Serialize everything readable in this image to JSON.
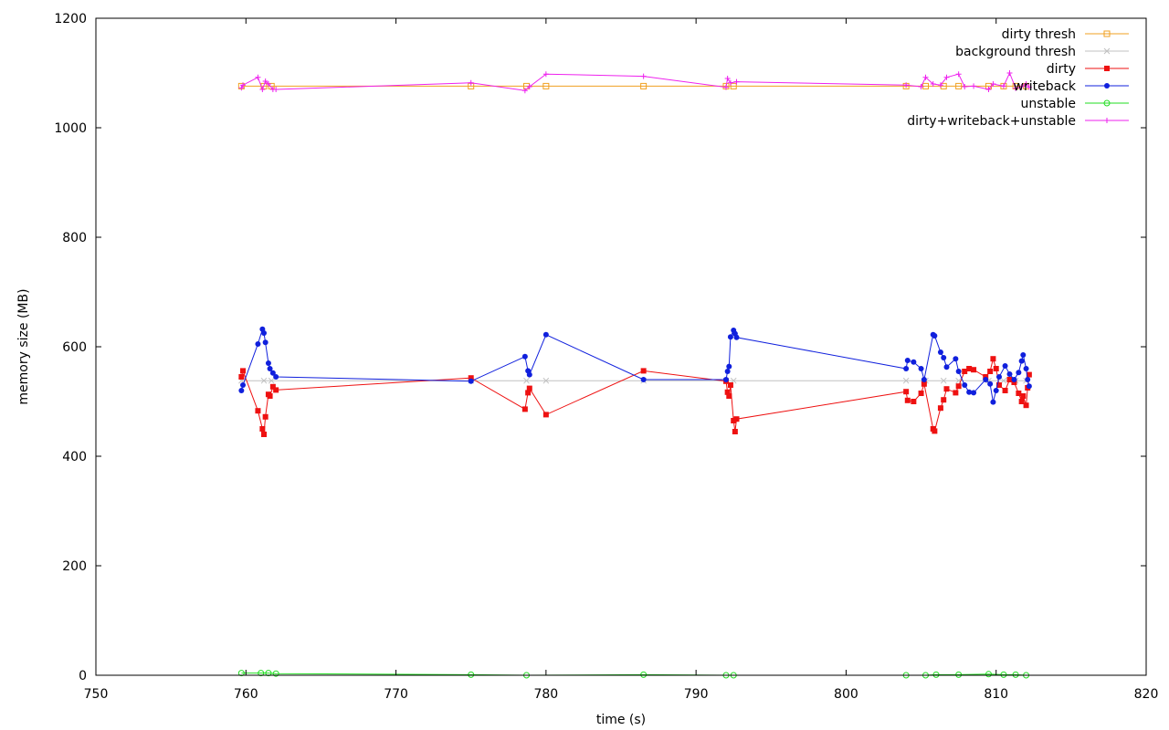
{
  "chart_data": {
    "type": "line",
    "xlabel": "time (s)",
    "ylabel": "memory size (MB)",
    "xlim": [
      750,
      820
    ],
    "ylim": [
      0,
      1200
    ],
    "x_ticks": [
      "750",
      "760",
      "770",
      "780",
      "790",
      "800",
      "810",
      "820"
    ],
    "y_ticks": [
      "0",
      "200",
      "400",
      "600",
      "800",
      "1000",
      "1200"
    ],
    "grid": false,
    "legend_position": "top-right",
    "series": [
      {
        "name": "dirty thresh",
        "color": "#f0a020",
        "marker": "square-open",
        "points": [
          [
            759.7,
            1076
          ],
          [
            761.2,
            1076
          ],
          [
            761.7,
            1076
          ],
          [
            775,
            1076
          ],
          [
            778.7,
            1076
          ],
          [
            780,
            1076
          ],
          [
            786.5,
            1076
          ],
          [
            792,
            1076
          ],
          [
            792.5,
            1076
          ],
          [
            804,
            1076
          ],
          [
            805.3,
            1076
          ],
          [
            806.5,
            1076
          ],
          [
            807.5,
            1076
          ],
          [
            809.5,
            1076
          ],
          [
            810.5,
            1076
          ],
          [
            811.3,
            1076
          ],
          [
            812,
            1076
          ]
        ]
      },
      {
        "name": "background thresh",
        "color": "#c0c0c0",
        "marker": "x",
        "points": [
          [
            759.7,
            538
          ],
          [
            761.2,
            538
          ],
          [
            761.7,
            538
          ],
          [
            775,
            538
          ],
          [
            778.7,
            538
          ],
          [
            780,
            538
          ],
          [
            786.5,
            538
          ],
          [
            792,
            538
          ],
          [
            792.5,
            538
          ],
          [
            804,
            538
          ],
          [
            805.3,
            538
          ],
          [
            806.5,
            538
          ],
          [
            807.5,
            538
          ],
          [
            809.5,
            538
          ],
          [
            810.5,
            538
          ],
          [
            811.3,
            538
          ],
          [
            812,
            538
          ]
        ]
      },
      {
        "name": "dirty",
        "color": "#ee1111",
        "marker": "square",
        "points": [
          [
            759.7,
            545
          ],
          [
            759.8,
            556
          ],
          [
            760.8,
            483
          ],
          [
            761.1,
            450
          ],
          [
            761.2,
            440
          ],
          [
            761.3,
            472
          ],
          [
            761.5,
            513
          ],
          [
            761.6,
            510
          ],
          [
            761.8,
            527
          ],
          [
            762,
            521
          ],
          [
            775,
            543
          ],
          [
            778.6,
            486
          ],
          [
            778.8,
            516
          ],
          [
            778.9,
            524
          ],
          [
            780,
            476
          ],
          [
            786.5,
            556
          ],
          [
            792,
            537
          ],
          [
            792.1,
            517
          ],
          [
            792.2,
            510
          ],
          [
            792.3,
            530
          ],
          [
            792.5,
            465
          ],
          [
            792.6,
            445
          ],
          [
            792.7,
            468
          ],
          [
            804,
            518
          ],
          [
            804.1,
            502
          ],
          [
            804.5,
            500
          ],
          [
            805,
            515
          ],
          [
            805.2,
            532
          ],
          [
            805.8,
            450
          ],
          [
            805.9,
            446
          ],
          [
            806.3,
            488
          ],
          [
            806.5,
            503
          ],
          [
            806.7,
            523
          ],
          [
            807.3,
            516
          ],
          [
            807.5,
            528
          ],
          [
            807.9,
            555
          ],
          [
            808.2,
            560
          ],
          [
            808.5,
            558
          ],
          [
            809.3,
            545
          ],
          [
            809.6,
            555
          ],
          [
            809.8,
            578
          ],
          [
            810,
            560
          ],
          [
            810.2,
            530
          ],
          [
            810.6,
            520
          ],
          [
            810.9,
            540
          ],
          [
            811.2,
            535
          ],
          [
            811.5,
            515
          ],
          [
            811.7,
            500
          ],
          [
            811.8,
            510
          ],
          [
            812,
            493
          ],
          [
            812.1,
            525
          ],
          [
            812.2,
            549
          ]
        ]
      },
      {
        "name": "writeback",
        "color": "#1020dd",
        "marker": "circle",
        "points": [
          [
            759.7,
            520
          ],
          [
            759.8,
            530
          ],
          [
            760.8,
            605
          ],
          [
            761.1,
            632
          ],
          [
            761.2,
            625
          ],
          [
            761.3,
            608
          ],
          [
            761.5,
            570
          ],
          [
            761.6,
            560
          ],
          [
            761.8,
            552
          ],
          [
            762,
            545
          ],
          [
            775,
            537
          ],
          [
            778.6,
            582
          ],
          [
            778.8,
            556
          ],
          [
            778.9,
            549
          ],
          [
            780,
            622
          ],
          [
            786.5,
            540
          ],
          [
            792,
            540
          ],
          [
            792.1,
            555
          ],
          [
            792.2,
            564
          ],
          [
            792.3,
            618
          ],
          [
            792.5,
            630
          ],
          [
            792.6,
            624
          ],
          [
            792.7,
            617
          ],
          [
            804,
            560
          ],
          [
            804.1,
            575
          ],
          [
            804.5,
            572
          ],
          [
            805,
            560
          ],
          [
            805.2,
            540
          ],
          [
            805.8,
            622
          ],
          [
            805.9,
            620
          ],
          [
            806.3,
            590
          ],
          [
            806.5,
            580
          ],
          [
            806.7,
            563
          ],
          [
            807.3,
            578
          ],
          [
            807.5,
            555
          ],
          [
            807.9,
            530
          ],
          [
            808.2,
            517
          ],
          [
            808.5,
            516
          ],
          [
            809.3,
            540
          ],
          [
            809.6,
            532
          ],
          [
            809.8,
            499
          ],
          [
            810,
            520
          ],
          [
            810.2,
            545
          ],
          [
            810.6,
            565
          ],
          [
            810.9,
            550
          ],
          [
            811.2,
            540
          ],
          [
            811.5,
            553
          ],
          [
            811.7,
            574
          ],
          [
            811.8,
            585
          ],
          [
            812,
            560
          ],
          [
            812.1,
            540
          ],
          [
            812.2,
            528
          ]
        ]
      },
      {
        "name": "unstable",
        "color": "#22dd22",
        "marker": "circle-open",
        "points": [
          [
            759.7,
            4
          ],
          [
            761,
            4
          ],
          [
            761.5,
            4
          ],
          [
            762,
            3
          ],
          [
            775,
            1
          ],
          [
            778.7,
            0
          ],
          [
            786.5,
            1
          ],
          [
            792,
            0
          ],
          [
            792.5,
            0
          ],
          [
            804,
            0
          ],
          [
            805.3,
            0
          ],
          [
            806,
            1
          ],
          [
            807.5,
            1
          ],
          [
            809.5,
            2
          ],
          [
            810.5,
            1
          ],
          [
            811.3,
            1
          ],
          [
            812,
            0
          ]
        ]
      },
      {
        "name": "dirty+writeback+unstable",
        "color": "#ee22ee",
        "marker": "plus",
        "points": [
          [
            759.7,
            1073
          ],
          [
            759.8,
            1078
          ],
          [
            760.8,
            1092
          ],
          [
            761.1,
            1070
          ],
          [
            761.3,
            1085
          ],
          [
            761.5,
            1080
          ],
          [
            761.8,
            1070
          ],
          [
            762,
            1070
          ],
          [
            775,
            1082
          ],
          [
            778.6,
            1068
          ],
          [
            778.9,
            1075
          ],
          [
            780,
            1098
          ],
          [
            786.5,
            1094
          ],
          [
            792,
            1074
          ],
          [
            792.1,
            1090
          ],
          [
            792.3,
            1082
          ],
          [
            792.7,
            1084
          ],
          [
            804,
            1078
          ],
          [
            805,
            1075
          ],
          [
            805.3,
            1092
          ],
          [
            805.8,
            1080
          ],
          [
            806.3,
            1078
          ],
          [
            806.7,
            1092
          ],
          [
            807.5,
            1098
          ],
          [
            807.9,
            1075
          ],
          [
            808.5,
            1076
          ],
          [
            809.5,
            1070
          ],
          [
            809.8,
            1080
          ],
          [
            810.5,
            1076
          ],
          [
            810.9,
            1100
          ],
          [
            811.3,
            1072
          ],
          [
            811.7,
            1075
          ],
          [
            812,
            1080
          ],
          [
            812.2,
            1074
          ]
        ]
      }
    ]
  }
}
